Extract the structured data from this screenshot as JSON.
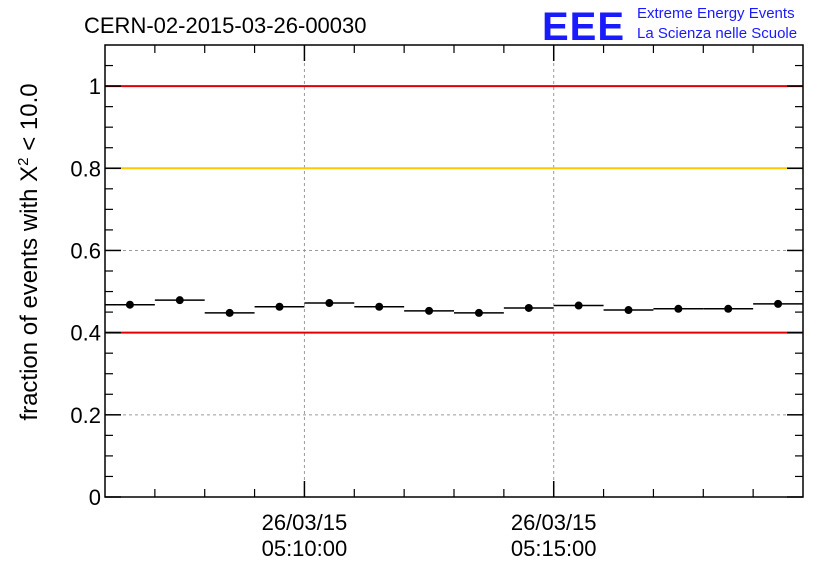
{
  "header": {
    "title": "CERN-02-2015-03-26-00030",
    "logo_text": "EEE",
    "logo_line1": "Extreme Energy Events",
    "logo_line2": "La Scienza nelle Scuole"
  },
  "colors": {
    "logo": "#1a1aff",
    "upper_line": "#e00000",
    "warn_line": "#ffc800",
    "lower_line": "#e00000",
    "points": "#000000",
    "grid": "#9a9a9a"
  },
  "chart_data": {
    "type": "scatter",
    "title": "CERN-02-2015-03-26-00030",
    "ylabel": "fraction of events with X² < 10.0",
    "ylabel_parts": {
      "prefix": "fraction of events with X",
      "superscript": "2",
      "suffix": " < 10.0"
    },
    "xlabel": "",
    "ylim": [
      0,
      1.1
    ],
    "yticks": [
      {
        "value": 0,
        "label": "0"
      },
      {
        "value": 0.2,
        "label": "0.2"
      },
      {
        "value": 0.4,
        "label": "0.4"
      },
      {
        "value": 0.6,
        "label": "0.6"
      },
      {
        "value": 0.8,
        "label": "0.8"
      },
      {
        "value": 1,
        "label": "1"
      }
    ],
    "xlim_minutes": [
      0,
      14
    ],
    "xticks": [
      {
        "minute": 4,
        "date": "26/03/15",
        "time": "05:10:00"
      },
      {
        "minute": 9,
        "date": "26/03/15",
        "time": "05:15:00"
      }
    ],
    "bin_width_minutes": 1,
    "x_time": [
      "05:06:30",
      "05:07:30",
      "05:08:30",
      "05:09:30",
      "05:10:30",
      "05:11:30",
      "05:12:30",
      "05:13:30",
      "05:14:30",
      "05:15:30",
      "05:16:30",
      "05:17:30",
      "05:18:30",
      "05:19:30"
    ],
    "x": [
      0.5,
      1.5,
      2.5,
      3.5,
      4.5,
      5.5,
      6.5,
      7.5,
      8.5,
      9.5,
      10.5,
      11.5,
      12.5,
      13.5
    ],
    "y": [
      0.468,
      0.479,
      0.448,
      0.463,
      0.472,
      0.463,
      0.453,
      0.448,
      0.46,
      0.466,
      0.455,
      0.458,
      0.458,
      0.47
    ],
    "reference_lines": [
      {
        "y": 1.0,
        "color": "#e00000"
      },
      {
        "y": 0.8,
        "color": "#ffc800"
      },
      {
        "y": 0.4,
        "color": "#e00000"
      }
    ],
    "grid": true,
    "legend": "none"
  }
}
